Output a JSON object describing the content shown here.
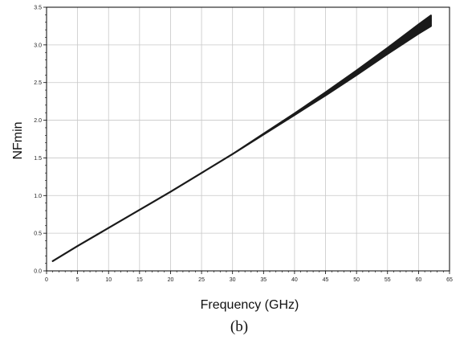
{
  "chart_data": {
    "type": "line",
    "xlabel": "Frequency (GHz)",
    "ylabel": "NFmin",
    "caption": "(b)",
    "xlim": [
      0,
      65
    ],
    "ylim": [
      0,
      3.5
    ],
    "x_ticks": [
      "0",
      "5",
      "10",
      "15",
      "20",
      "25",
      "30",
      "35",
      "40",
      "45",
      "50",
      "55",
      "60",
      "65"
    ],
    "y_ticks": [
      "0.0",
      "0.5",
      "1.0",
      "1.5",
      "2.0",
      "2.5",
      "3.0",
      "3.5"
    ],
    "grid": true,
    "series": [
      {
        "x": [
          1,
          5,
          10,
          15,
          20,
          25,
          30,
          35,
          40,
          45,
          50,
          55,
          60,
          62
        ],
        "y_low": [
          0.13,
          0.33,
          0.57,
          0.81,
          1.05,
          1.3,
          1.55,
          1.81,
          2.07,
          2.33,
          2.6,
          2.88,
          3.15,
          3.25
        ],
        "y_high": [
          0.13,
          0.33,
          0.57,
          0.81,
          1.05,
          1.3,
          1.55,
          1.82,
          2.09,
          2.37,
          2.66,
          2.96,
          3.27,
          3.39
        ],
        "color": "#1a1a1a"
      }
    ]
  }
}
